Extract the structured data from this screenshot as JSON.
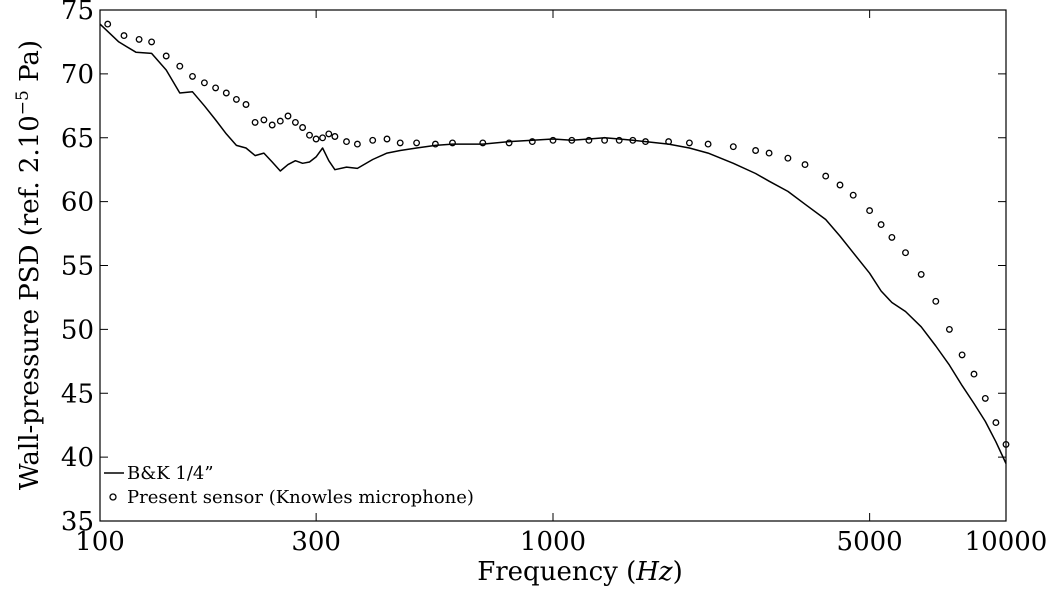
{
  "chart_data": {
    "type": "line",
    "xscale": "log",
    "xlim": [
      100,
      10000
    ],
    "ylim": [
      35,
      75
    ],
    "xticks": [
      100,
      300,
      1000,
      5000,
      10000
    ],
    "xtick_labels": [
      "100",
      "300",
      "1000",
      "5000",
      "10000"
    ],
    "yticks": [
      35,
      40,
      45,
      50,
      55,
      60,
      65,
      70,
      75
    ],
    "ytick_labels": [
      "35",
      "40",
      "45",
      "50",
      "55",
      "60",
      "65",
      "70",
      "75"
    ],
    "xlabel": "Frequency (Hz)",
    "ylabel": "Wall-pressure PSD (ref. 2.10⁻⁵ Pa)",
    "grid": false,
    "legend_position": "bottom-left",
    "series": [
      {
        "name": "B&K 1/4”",
        "style": "line",
        "color": "#000000",
        "x": [
          100,
          110,
          120,
          130,
          140,
          150,
          160,
          170,
          180,
          190,
          200,
          210,
          220,
          230,
          240,
          250,
          260,
          270,
          280,
          290,
          300,
          310,
          320,
          330,
          350,
          370,
          400,
          430,
          460,
          500,
          550,
          600,
          700,
          800,
          900,
          1000,
          1100,
          1200,
          1300,
          1400,
          1500,
          1600,
          1800,
          2000,
          2200,
          2500,
          2800,
          3000,
          3300,
          3600,
          4000,
          4300,
          4600,
          5000,
          5300,
          5600,
          6000,
          6500,
          7000,
          7500,
          8000,
          8500,
          9000,
          9500,
          10000
        ],
        "y": [
          73.9,
          72.5,
          71.7,
          71.6,
          70.3,
          68.5,
          68.6,
          67.5,
          66.4,
          65.3,
          64.4,
          64.2,
          63.6,
          63.8,
          63.1,
          62.4,
          62.9,
          63.2,
          63.0,
          63.1,
          63.5,
          64.2,
          63.2,
          62.5,
          62.7,
          62.6,
          63.3,
          63.8,
          64.0,
          64.2,
          64.4,
          64.5,
          64.5,
          64.7,
          64.8,
          64.9,
          64.8,
          64.9,
          65.0,
          64.9,
          64.8,
          64.7,
          64.5,
          64.2,
          63.8,
          63.0,
          62.2,
          61.6,
          60.8,
          59.8,
          58.6,
          57.3,
          56.0,
          54.4,
          53.0,
          52.1,
          51.4,
          50.2,
          48.7,
          47.2,
          45.6,
          44.2,
          42.8,
          41.2,
          39.5
        ]
      },
      {
        "name": "Present sensor (Knowles microphone)",
        "style": "markers",
        "marker": "open-circle",
        "color": "#000000",
        "x": [
          104,
          113,
          122,
          130,
          140,
          150,
          160,
          170,
          180,
          190,
          200,
          210,
          220,
          230,
          240,
          250,
          260,
          270,
          280,
          290,
          300,
          310,
          320,
          330,
          350,
          370,
          400,
          430,
          460,
          500,
          550,
          600,
          700,
          800,
          900,
          1000,
          1100,
          1200,
          1300,
          1400,
          1500,
          1600,
          1800,
          2000,
          2200,
          2500,
          2800,
          3000,
          3300,
          3600,
          4000,
          4300,
          4600,
          5000,
          5300,
          5600,
          6000,
          6500,
          7000,
          7500,
          8000,
          8500,
          9000,
          9500,
          10000
        ],
        "y": [
          73.9,
          73.0,
          72.7,
          72.5,
          71.4,
          70.6,
          69.8,
          69.3,
          68.9,
          68.5,
          68.0,
          67.6,
          66.2,
          66.4,
          66.0,
          66.3,
          66.7,
          66.2,
          65.8,
          65.2,
          64.9,
          65.0,
          65.3,
          65.1,
          64.7,
          64.5,
          64.8,
          64.9,
          64.6,
          64.6,
          64.5,
          64.6,
          64.6,
          64.6,
          64.7,
          64.8,
          64.8,
          64.8,
          64.8,
          64.8,
          64.8,
          64.7,
          64.7,
          64.6,
          64.5,
          64.3,
          64.0,
          63.8,
          63.4,
          62.9,
          62.0,
          61.3,
          60.5,
          59.3,
          58.2,
          57.2,
          56.0,
          54.3,
          52.2,
          50.0,
          48.0,
          46.5,
          44.6,
          42.7,
          41.0
        ]
      }
    ]
  }
}
